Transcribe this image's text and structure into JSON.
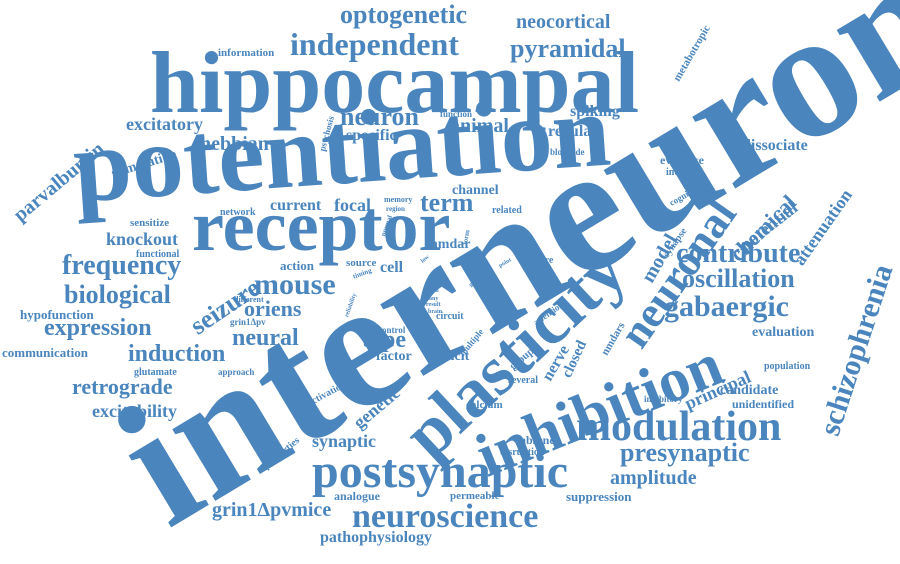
{
  "cloud": {
    "color": "#4a86bd",
    "words": {
      "interneuron": "interneuron",
      "potentiation": "potentiation",
      "hippocampal": "hippocampal",
      "receptor": "receptor",
      "plasticity": "plasticity",
      "inhibition": "inhibition",
      "neuronal": "neuronal",
      "postsynaptic": "postsynaptic",
      "modulation": "modulation",
      "neuroscience": "neuroscience",
      "independent": "independent",
      "pyramidal": "pyramidal",
      "optogenetic": "optogenetic",
      "neocortical": "neocortical",
      "information": "information",
      "metabotropic": "metabotropic",
      "excitatory": "excitatory",
      "hebbian": "hebbian",
      "neuron": "neuron",
      "animal": "animal",
      "specific": "specific",
      "regular": "regular",
      "spiking": "spiking",
      "dissociate": "dissociate",
      "parvalbumin": "parvalbumin",
      "stimulation": "stimulation",
      "psychosis": "psychosis",
      "function": "function",
      "blockade": "blockade",
      "evidence": "evidence",
      "induced": "induced",
      "chemical": "chemical",
      "attenuation": "attenuation",
      "schizophrenia": "schizophrenia",
      "potential": "potential",
      "contribute": "contribute",
      "oscillation": "oscillation",
      "gabaergic": "gabaergic",
      "evaluation": "evaluation",
      "principal": "principal",
      "population": "population",
      "candidate": "candidate",
      "unidentified": "unidentified",
      "inhibitory": "inhibitory",
      "presynaptic": "presynaptic",
      "amplitude": "amplitude",
      "suppression": "suppression",
      "sensitize": "sensitize",
      "network": "network",
      "current": "current",
      "focal": "focal",
      "channel": "channel",
      "memory": "memory",
      "region": "region",
      "normal": "normal",
      "related": "related",
      "term": "term",
      "cognitive": "cognitive",
      "synapse": "synapse",
      "model": "model",
      "knockout": "knockout",
      "functional": "functional",
      "frequency": "frequency",
      "seizure": "seizure",
      "mouse": "mouse",
      "action": "action",
      "source": "source",
      "timing": "timing",
      "cell": "cell",
      "nmdar": "nmdar",
      "role": "role",
      "require": "require",
      "point": "point",
      "biological": "biological",
      "oriens": "oriens",
      "different": "different",
      "hypofunction": "hypofunction",
      "expression": "expression",
      "grin1dpv": "grin1Δpv",
      "neural": "neural",
      "type": "type",
      "communication": "communication",
      "induction": "induction",
      "glutamate": "glutamate",
      "approach": "approach",
      "retrograde": "retrograde",
      "excitability": "excitability",
      "activation": "activation",
      "genetic": "genetic",
      "factor": "factor",
      "deficit": "deficit",
      "control": "control",
      "multiple": "multiple",
      "nerve": "nerve",
      "closed": "closed",
      "group": "group",
      "nmdars": "nmdars",
      "attention": "attention",
      "several": "several",
      "calcium": "calcium",
      "absence": "absence",
      "disruption": "disruption",
      "synaptic": "synaptic",
      "properties": "properties",
      "analogue": "analogue",
      "permeable": "permeable",
      "grin1dpvmice": "grin1Δpvmice",
      "pathophysiology": "pathophysiology",
      "train": "train",
      "many": "many",
      "result": "result",
      "brain": "brain",
      "circuit": "circuit",
      "loop": "loop",
      "effect": "effect",
      "gene": "gene",
      "form": "form",
      "reliability": "reliability",
      "low": "low",
      "first": "first",
      "fire": "fire"
    }
  }
}
